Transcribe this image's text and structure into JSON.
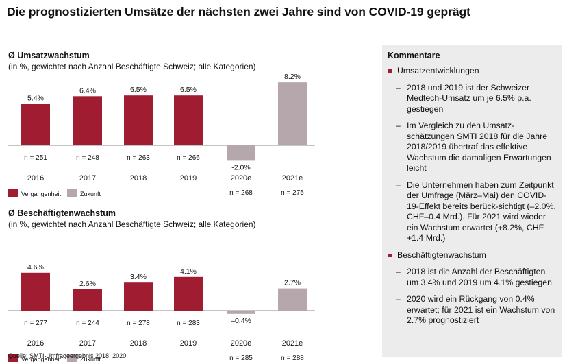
{
  "title": "Die prognostizierten Umsätze der nächsten zwei Jahre sind von COVID-19 geprägt",
  "charts": [
    {
      "heading": "Ø Umsatzwachstum",
      "subheading": "(in %, gewichtet nach Anzahl Beschäftigte Schweiz; alle Kategorien)"
    },
    {
      "heading": "Ø Beschäftigtenwachstum",
      "subheading": "(in %, gewichtet nach Anzahl Beschäftigte Schweiz; alle Kategorien)"
    }
  ],
  "legend": {
    "past": "Vergangenheit",
    "future": "Zukunft"
  },
  "colors": {
    "past": "#a01c31",
    "future": "#b5a7ab"
  },
  "chart_data": [
    {
      "type": "bar",
      "title": "Ø Umsatzwachstum",
      "categories": [
        "2016",
        "2017",
        "2018",
        "2019",
        "2020e",
        "2021e"
      ],
      "values": [
        5.4,
        6.4,
        6.5,
        6.5,
        -2.0,
        8.2
      ],
      "value_labels": [
        "5.4%",
        "6.4%",
        "6.5%",
        "6.5%",
        "-2.0%",
        "8.2%"
      ],
      "n_labels": [
        "n = 251",
        "n = 248",
        "n = 263",
        "n = 266",
        "n = 268",
        "n = 275"
      ],
      "kinds": [
        "past",
        "past",
        "past",
        "past",
        "future",
        "future"
      ],
      "legend": [
        "Vergangenheit",
        "Zukunft"
      ],
      "grid": false
    },
    {
      "type": "bar",
      "title": "Ø Beschäftigtenwachstum",
      "categories": [
        "2016",
        "2017",
        "2018",
        "2019",
        "2020e",
        "2021e"
      ],
      "values": [
        4.6,
        2.6,
        3.4,
        4.1,
        -0.4,
        2.7
      ],
      "value_labels": [
        "4.6%",
        "2.6%",
        "3.4%",
        "4.1%",
        "–0.4%",
        "2.7%"
      ],
      "n_labels": [
        "n = 277",
        "n = 244",
        "n = 278",
        "n = 283",
        "n = 285",
        "n = 288"
      ],
      "kinds": [
        "past",
        "past",
        "past",
        "past",
        "future",
        "future"
      ],
      "legend": [
        "Vergangenheit",
        "Zukunft"
      ],
      "grid": false
    }
  ],
  "comments": {
    "heading": "Kommentare",
    "sections": [
      {
        "label": "Umsatzentwicklungen",
        "items": [
          "2018 und 2019 ist der Schweizer Medtech-Umsatz um je 6.5% p.a. gestiegen",
          "Im Vergleich zu den Umsatz-schätzungen SMTI 2018 für die Jahre 2018/2019 übertraf das effektive Wachstum die damaligen Erwartungen leicht",
          "Die Unternehmen haben zum Zeitpunkt der Umfrage (März–Mai) den COVID-19-Effekt bereits berück-sichtigt (–2.0%, CHF–0.4 Mrd.). Für 2021 wird wieder ein Wachstum erwartet (+8.2%, CHF +1.4 Mrd.)"
        ]
      },
      {
        "label": "Beschäftigtenwachstum",
        "items": [
          "2018 ist die Anzahl der Beschäftigten um 3.4% und 2019 um 4.1% gestiegen",
          "2020 wird ein Rückgang von 0.4% erwartet; für 2021 ist ein Wachstum von 2.7% prognostiziert"
        ]
      }
    ]
  },
  "source": "Quelle: SMTI-Umfrageergebnis 2018, 2020"
}
